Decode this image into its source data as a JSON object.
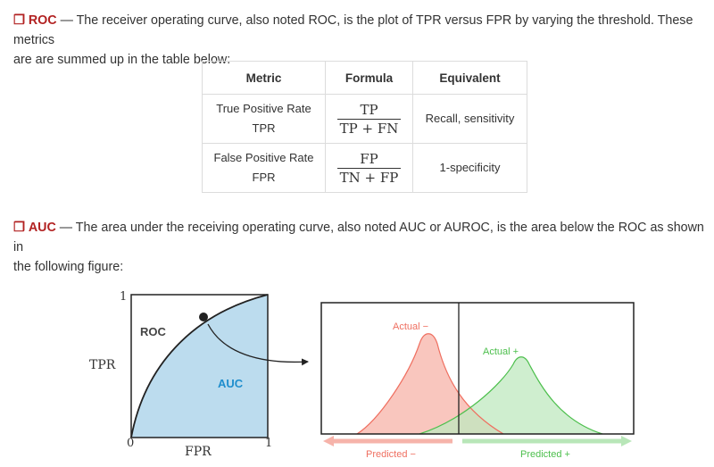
{
  "roc_section": {
    "checkbox": "❒",
    "term": "ROC",
    "text_line1": " — The receiver operating curve, also noted ROC, is the plot of TPR versus FPR by varying the threshold. These metrics",
    "text_line2": "are are summed up in the table below:"
  },
  "table": {
    "headers": [
      "Metric",
      "Formula",
      "Equivalent"
    ],
    "rows": [
      {
        "metric_name": "True Positive Rate",
        "metric_abbr": "TPR",
        "numerator": "TP",
        "denominator": "TP + FN",
        "equivalent": "Recall, sensitivity"
      },
      {
        "metric_name": "False Positive Rate",
        "metric_abbr": "FPR",
        "numerator": "FP",
        "denominator": "TN + FP",
        "equivalent": "1-specificity"
      }
    ]
  },
  "auc_section": {
    "checkbox": "❒",
    "term": "AUC",
    "text_line1": " — The area under the receiving operating curve, also noted AUC or AUROC, is the area below the ROC as shown in",
    "text_line2": "the following figure:"
  },
  "figure": {
    "roc_plot": {
      "y_tick_top": "1",
      "origin_label": "0",
      "x_tick_right": "1",
      "y_label": "TPR",
      "x_label": "FPR",
      "curve_label": "ROC",
      "area_label": "AUC"
    },
    "distribution_plot": {
      "negative_label": "Actual −",
      "positive_label": "Actual +",
      "predicted_negative_label": "Predicted −",
      "predicted_positive_label": "Predicted +"
    },
    "colors": {
      "auc_fill": "#bcdcee",
      "auc_text": "#1f8ecd",
      "negative": "#ef6f60",
      "negative_fill": "#f8b8ae",
      "positive": "#4cbf4c",
      "positive_fill": "#bfe8bf"
    }
  }
}
